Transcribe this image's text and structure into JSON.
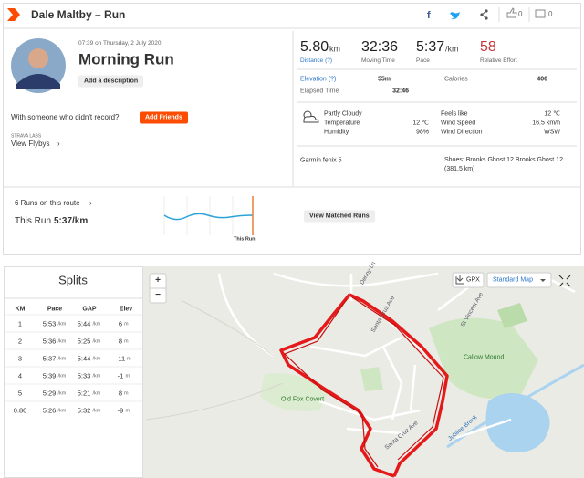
{
  "header": {
    "title": "Dale Maltby – Run",
    "kudos": "0",
    "comments": "0"
  },
  "activity": {
    "datetime": "07:39 on Thursday, 2 July 2020",
    "name": "Morning Run",
    "add_description": "Add a description",
    "friends_prompt": "With someone who didn't record?",
    "add_friends": "Add Friends",
    "labs": "STRAVA LABS",
    "flybys": "View Flybys"
  },
  "stats": {
    "primary": [
      {
        "value": "5.80",
        "unit": "km",
        "label": "Distance (?)"
      },
      {
        "value": "32:36",
        "label": "Moving Time"
      },
      {
        "value": "5:37",
        "unit": "/km",
        "label": "Pace"
      },
      {
        "value": "58",
        "label": "Relative Effort"
      }
    ],
    "secondary": [
      [
        "Elevation (?)",
        "55m"
      ],
      [
        "Calories",
        "406"
      ],
      [
        "Elapsed Time",
        "32:46"
      ]
    ]
  },
  "weather": {
    "rows": [
      [
        "Partly Cloudy",
        "",
        "Feels like",
        "12 ℃"
      ],
      [
        "Temperature",
        "12 ℃",
        "Wind Speed",
        "16.5 km/h"
      ],
      [
        "Humidity",
        "98%",
        "Wind Direction",
        "WSW"
      ]
    ]
  },
  "device": "Garmin fenix 5",
  "shoes": "Shoes: Brooks Ghost 12 Brooks Ghost 12 (381.5 km)",
  "route": {
    "count": "6 Runs on this route",
    "this_run_label": "This Run",
    "this_run_pace": "5:37/km",
    "chart_label": "This Run",
    "button": "View Matched Runs"
  },
  "splits": {
    "title": "Splits",
    "columns": [
      "KM",
      "Pace",
      "GAP",
      "Elev"
    ],
    "rows": [
      [
        [
          "1"
        ],
        [
          "5:53",
          "/km"
        ],
        [
          "5:44",
          "/km"
        ],
        [
          "6",
          "m"
        ]
      ],
      [
        [
          "2"
        ],
        [
          "5:36",
          "/km"
        ],
        [
          "5:25",
          "/km"
        ],
        [
          "8",
          "m"
        ]
      ],
      [
        [
          "3"
        ],
        [
          "5:37",
          "/km"
        ],
        [
          "5:44",
          "/km"
        ],
        [
          "-11",
          "m"
        ]
      ],
      [
        [
          "4"
        ],
        [
          "5:39",
          "/km"
        ],
        [
          "5:33",
          "/km"
        ],
        [
          "-1",
          "m"
        ]
      ],
      [
        [
          "5"
        ],
        [
          "5:29",
          "/km"
        ],
        [
          "5:21",
          "/km"
        ],
        [
          "8",
          "m"
        ]
      ],
      [
        [
          "0.80"
        ],
        [
          "5:26",
          "/km"
        ],
        [
          "5:32",
          "/km"
        ],
        [
          "-9",
          "m"
        ]
      ]
    ]
  },
  "map": {
    "gpx": "GPX",
    "style": "Standard Map",
    "zoom_in": "+",
    "zoom_out": "−",
    "labels": [
      "Denny Ln",
      "Santa Cruz Ave",
      "St Vincent Ave",
      "Callow Mound",
      "Old Fox Covert",
      "Jubilee Brook",
      "Santa Cruz Ave"
    ]
  }
}
